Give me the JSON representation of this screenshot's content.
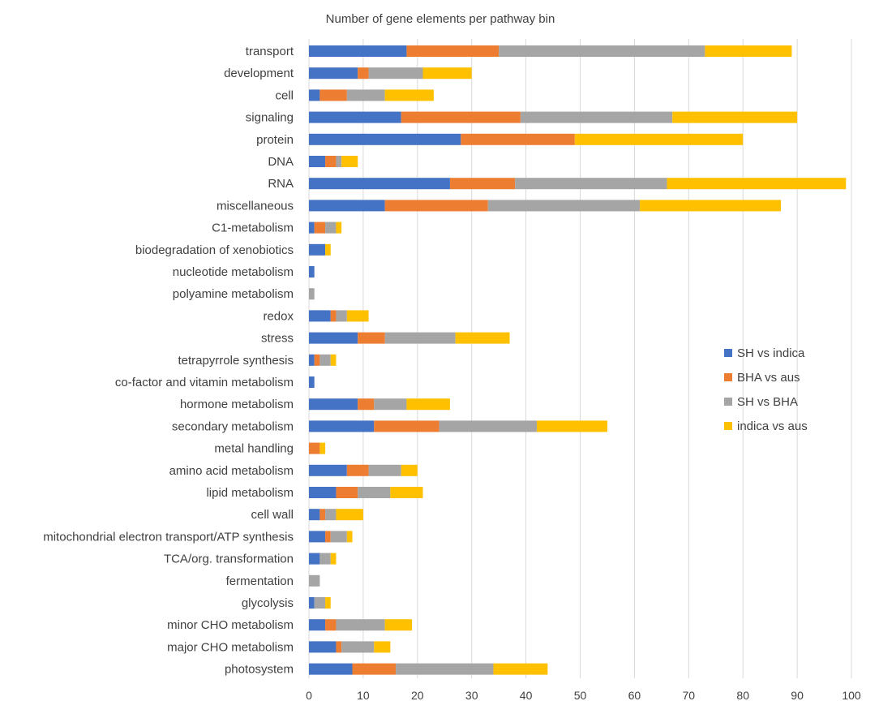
{
  "chart_data": {
    "type": "bar",
    "orientation": "horizontal",
    "stacked": true,
    "title": "Number of gene elements per pathway bin",
    "xlabel": "",
    "ylabel": "",
    "xlim": [
      0,
      100
    ],
    "xticks": [
      0,
      10,
      20,
      30,
      40,
      50,
      60,
      70,
      80,
      90,
      100
    ],
    "grid": "vertical",
    "legend_position": "right",
    "categories": [
      "transport",
      "development",
      "cell",
      "signaling",
      "protein",
      "DNA",
      "RNA",
      "miscellaneous",
      "C1-metabolism",
      "biodegradation of xenobiotics",
      "nucleotide metabolism",
      "polyamine metabolism",
      "redox",
      "stress",
      "tetrapyrrole synthesis",
      "co-factor and vitamin metabolism",
      "hormone metabolism",
      "secondary metabolism",
      "metal handling",
      "amino acid metabolism",
      "lipid metabolism",
      "cell wall",
      "mitochondrial electron transport/ATP synthesis",
      "TCA/org. transformation",
      "fermentation",
      "glycolysis",
      "minor CHO metabolism",
      "major CHO metabolism",
      "photosystem"
    ],
    "series": [
      {
        "name": "SH vs indica",
        "color": "#4472c4",
        "values": [
          18,
          9,
          2,
          17,
          28,
          3,
          26,
          14,
          1,
          3,
          1,
          0,
          4,
          9,
          1,
          1,
          9,
          12,
          0,
          7,
          5,
          2,
          3,
          2,
          0,
          1,
          3,
          5,
          8
        ]
      },
      {
        "name": "BHA vs aus",
        "color": "#ed7d31",
        "values": [
          17,
          2,
          5,
          22,
          21,
          2,
          12,
          19,
          2,
          0,
          0,
          0,
          1,
          5,
          1,
          0,
          3,
          12,
          2,
          4,
          4,
          1,
          1,
          0,
          0,
          0,
          2,
          1,
          8
        ]
      },
      {
        "name": "SH vs BHA",
        "color": "#a5a5a5",
        "values": [
          38,
          10,
          7,
          28,
          0,
          1,
          28,
          28,
          2,
          0,
          0,
          1,
          2,
          13,
          2,
          0,
          6,
          18,
          0,
          6,
          6,
          2,
          3,
          2,
          2,
          2,
          9,
          6,
          18
        ]
      },
      {
        "name": "indica vs aus",
        "color": "#ffc000",
        "values": [
          16,
          9,
          9,
          23,
          31,
          3,
          33,
          26,
          1,
          1,
          0,
          0,
          4,
          10,
          1,
          0,
          8,
          13,
          1,
          3,
          6,
          5,
          1,
          1,
          0,
          1,
          5,
          3,
          10
        ]
      }
    ]
  }
}
